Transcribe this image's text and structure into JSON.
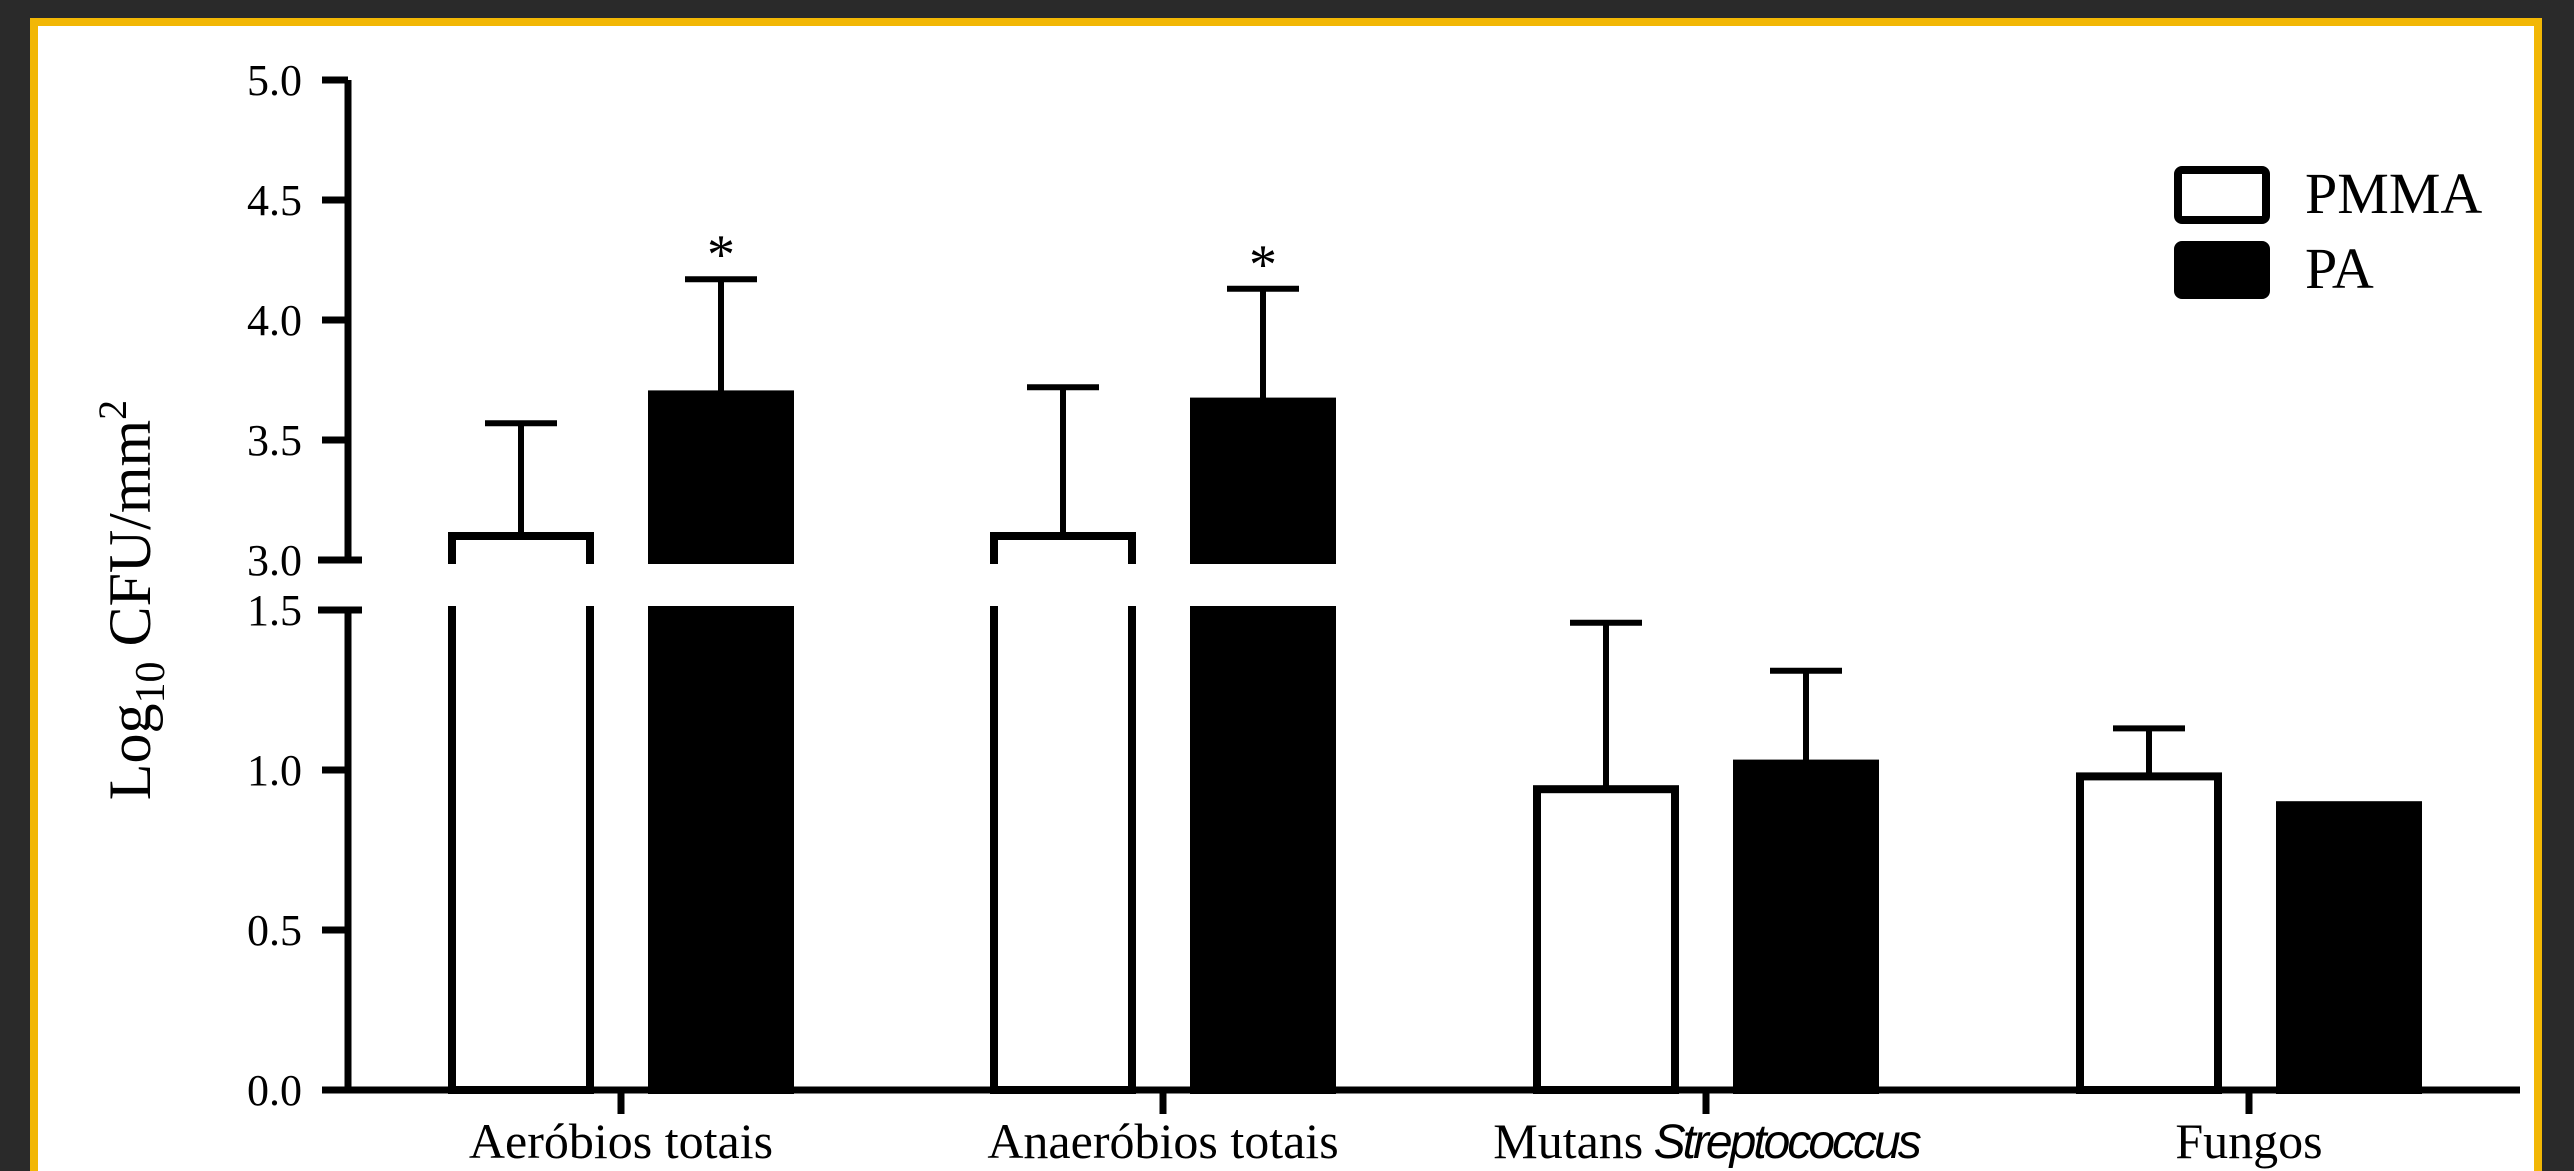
{
  "chart_data": {
    "type": "bar",
    "ylabel": {
      "main": "Log",
      "sub": "10",
      "unit": " CFU/mm",
      "sup": "2"
    },
    "categories": [
      "Aeróbios totais",
      "Anaeróbios totais",
      "Mutans",
      "Fungos"
    ],
    "category_italic_suffix": [
      "",
      "",
      "Streptococcus",
      ""
    ],
    "series": [
      {
        "name": "PMMA",
        "values": [
          3.1,
          3.1,
          0.94,
          0.98
        ],
        "errors": [
          0.47,
          0.62,
          0.52,
          0.15
        ],
        "significant": [
          false,
          false,
          false,
          false
        ]
      },
      {
        "name": "PA",
        "values": [
          3.69,
          3.66,
          1.02,
          0.89
        ],
        "errors": [
          0.48,
          0.47,
          0.29,
          0
        ],
        "significant": [
          true,
          true,
          false,
          false
        ]
      }
    ],
    "significance_marker": "*",
    "axis_break": {
      "lower_max": 1.5,
      "upper_min": 3.0,
      "upper_max": 5.0
    },
    "yticks_lower": [
      "0.0",
      "0.5",
      "1.0",
      "1.5"
    ],
    "yticks_upper": [
      "3.0",
      "3.5",
      "4.0",
      "4.5",
      "5.0"
    ],
    "legend_position": "top-right",
    "colors": {
      "PMMA": "#ffffff",
      "PA": "#000000",
      "frame": "#f2b705",
      "background": "#2a2a2a"
    }
  }
}
